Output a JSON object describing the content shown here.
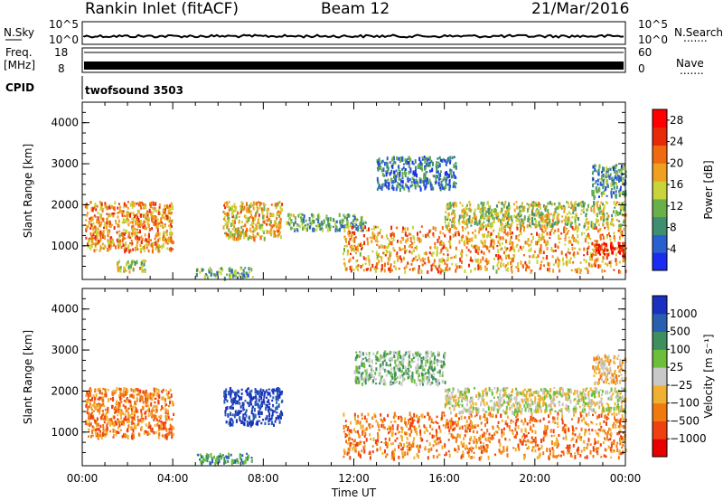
{
  "header": {
    "title": "Rankin Inlet (fitACF)",
    "beam": "Beam 12",
    "date": "21/Mar/2016"
  },
  "strip": {
    "nsky_label": "N.Sky",
    "nsearch_label": "N.Search",
    "nsky_ticks_left": [
      "10^5",
      "10^0"
    ],
    "nsky_ticks_right": [
      "10^5",
      "10^0"
    ],
    "freq_label": "Freq.",
    "freq_unit": "[MHz]",
    "freq_ticks": [
      "18",
      "8"
    ],
    "nave_label": "Nave",
    "nave_ticks": [
      "60",
      "0"
    ],
    "cpid_label": "CPID",
    "cpid_value": "twofsound 3503",
    "dots": "......."
  },
  "colors": {
    "power_scale": [
      "#1a2cf0",
      "#2a5fd0",
      "#3d8f6f",
      "#69b04a",
      "#c8d43a",
      "#f0a020",
      "#f06a10",
      "#e82a0a",
      "#ff0000"
    ],
    "velocity_scale": [
      "#e80000",
      "#f04010",
      "#f07a10",
      "#f0b030",
      "#c8c8c8",
      "#6bbf3a",
      "#3d8f5f",
      "#2a5fb0",
      "#1a30c0"
    ]
  },
  "chart_data": [
    {
      "type": "heatmap",
      "name_visible": "Power",
      "ylabel": "Slant Range [km]",
      "yticks": [
        "4000",
        "3000",
        "2000",
        "1000"
      ],
      "ylim": [
        180,
        4500
      ],
      "colorbar_label": "Power [dB]",
      "colorbar_ticks": [
        "28",
        "24",
        "20",
        "16",
        "12",
        "8",
        "4"
      ],
      "colorbar_range": [
        0,
        30
      ],
      "xticks": [
        "00:00",
        "04:00",
        "08:00",
        "12:00",
        "16:00",
        "20:00",
        "00:00"
      ],
      "xlim": [
        0,
        24
      ],
      "regions": [
        {
          "t": [
            0.1,
            4.0
          ],
          "r": [
            900,
            2100
          ],
          "level": 20
        },
        {
          "t": [
            1.5,
            2.8
          ],
          "r": [
            400,
            700
          ],
          "level": 14
        },
        {
          "t": [
            6.2,
            8.8
          ],
          "r": [
            1200,
            2100
          ],
          "level": 18
        },
        {
          "t": [
            5.0,
            7.5
          ],
          "r": [
            250,
            500
          ],
          "level": 10
        },
        {
          "t": [
            9.0,
            12.5
          ],
          "r": [
            1400,
            1800
          ],
          "level": 10
        },
        {
          "t": [
            11.5,
            24
          ],
          "r": [
            400,
            1500
          ],
          "level": 20
        },
        {
          "t": [
            13,
            16.5
          ],
          "r": [
            2400,
            3200
          ],
          "level": 6
        },
        {
          "t": [
            16,
            24
          ],
          "r": [
            1500,
            2100
          ],
          "level": 14
        },
        {
          "t": [
            22.5,
            24
          ],
          "r": [
            2200,
            3000
          ],
          "level": 8
        },
        {
          "t": [
            22.5,
            24
          ],
          "r": [
            800,
            1100
          ],
          "level": 27
        }
      ]
    },
    {
      "type": "heatmap",
      "name_visible": "Velocity",
      "ylabel": "Slant Range [km]",
      "yticks": [
        "4000",
        "3000",
        "2000",
        "1000"
      ],
      "ylim": [
        180,
        4500
      ],
      "colorbar_label": "Velocity [m s⁻¹]",
      "colorbar_ticks": [
        "1000",
        "500",
        "100",
        "25",
        "−25",
        "−100",
        "−500",
        "−1000"
      ],
      "xlabel": "Time UT",
      "xticks": [
        "00:00",
        "04:00",
        "08:00",
        "12:00",
        "16:00",
        "20:00",
        "00:00"
      ],
      "xlim": [
        0,
        24
      ],
      "regions": [
        {
          "t": [
            0.1,
            4.0
          ],
          "r": [
            900,
            2100
          ],
          "level": 2
        },
        {
          "t": [
            6.2,
            8.8
          ],
          "r": [
            1200,
            2100
          ],
          "level": 8
        },
        {
          "t": [
            5.0,
            7.5
          ],
          "r": [
            250,
            500
          ],
          "level": 6
        },
        {
          "t": [
            11.5,
            24
          ],
          "r": [
            400,
            1500
          ],
          "level": 2
        },
        {
          "t": [
            16,
            24
          ],
          "r": [
            1500,
            2100
          ],
          "level": 4
        },
        {
          "t": [
            12,
            16
          ],
          "r": [
            2200,
            3000
          ],
          "level": 5
        },
        {
          "t": [
            22.5,
            24
          ],
          "r": [
            2200,
            2900
          ],
          "level": 3
        }
      ]
    }
  ]
}
